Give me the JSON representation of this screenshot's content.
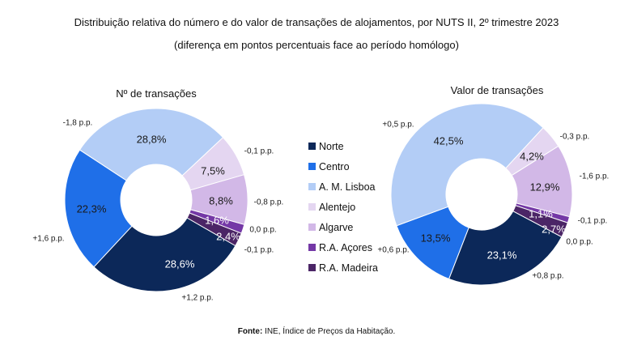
{
  "title": "Distribuição relativa do número e do valor de transações de alojamentos, por NUTS II, 2º trimestre 2023",
  "subtitle": "(diferença em pontos percentuais face ao período homólogo)",
  "source_label": "Fonte:",
  "source_text": " INE, Índice de Preços da Habitação.",
  "legend": [
    "Norte",
    "Centro",
    "A. M. Lisboa",
    "Alentejo",
    "Algarve",
    "R.A. Açores",
    "R.A. Madeira"
  ],
  "colors": [
    "#0c2859",
    "#1f6fe8",
    "#b3cdf6",
    "#e4d6f1",
    "#d2b8e7",
    "#7438a6",
    "#4b2566"
  ],
  "chart_data": [
    {
      "type": "pie",
      "title": "Nº de transações",
      "categories": [
        "Norte",
        "Centro",
        "A. M. Lisboa",
        "Alentejo",
        "Algarve",
        "R.A. Açores",
        "R.A. Madeira"
      ],
      "values": [
        28.6,
        22.3,
        28.8,
        7.5,
        8.8,
        1.6,
        2.4
      ],
      "value_labels": [
        "28,6%",
        "22,3%",
        "28,8%",
        "7,5%",
        "8,8%",
        "1,6%",
        "2,4%"
      ],
      "change_labels": [
        "+1,2 p.p.",
        "+1,6 p.p.",
        "-1,8 p.p.",
        "-0,1 p.p.",
        "-0,8 p.p.",
        "0,0 p.p.",
        "-0,1 p.p."
      ]
    },
    {
      "type": "pie",
      "title": "Valor de transações",
      "categories": [
        "Norte",
        "Centro",
        "A. M. Lisboa",
        "Alentejo",
        "Algarve",
        "R.A. Açores",
        "R.A. Madeira"
      ],
      "values": [
        23.1,
        13.5,
        42.5,
        4.2,
        12.9,
        1.1,
        2.7
      ],
      "value_labels": [
        "23,1%",
        "13,5%",
        "42,5%",
        "4,2%",
        "12,9%",
        "1,1%",
        "2,7%"
      ],
      "change_labels": [
        "+0,8 p.p.",
        "+0,6 p.p.",
        "+0,5 p.p.",
        "-0,3 p.p.",
        "-1,6 p.p.",
        "-0,1 p.p.",
        "0,0 p.p."
      ]
    }
  ]
}
